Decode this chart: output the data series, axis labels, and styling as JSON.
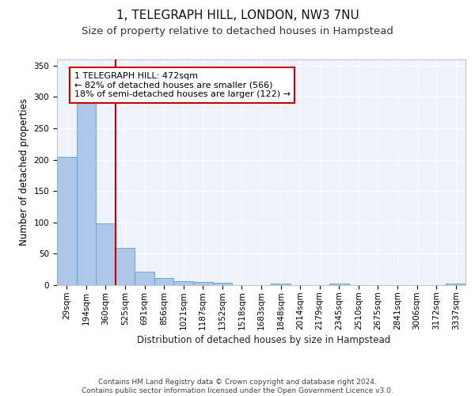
{
  "title": "1, TELEGRAPH HILL, LONDON, NW3 7NU",
  "subtitle": "Size of property relative to detached houses in Hampstead",
  "xlabel": "Distribution of detached houses by size in Hampstead",
  "ylabel": "Number of detached properties",
  "categories": [
    "29sqm",
    "194sqm",
    "360sqm",
    "525sqm",
    "691sqm",
    "856sqm",
    "1021sqm",
    "1187sqm",
    "1352sqm",
    "1518sqm",
    "1683sqm",
    "1848sqm",
    "2014sqm",
    "2179sqm",
    "2345sqm",
    "2510sqm",
    "2675sqm",
    "2841sqm",
    "3006sqm",
    "3172sqm",
    "3337sqm"
  ],
  "values": [
    204,
    291,
    98,
    60,
    21,
    11,
    6,
    5,
    4,
    0,
    0,
    2,
    0,
    0,
    3,
    0,
    0,
    0,
    0,
    0,
    3
  ],
  "bar_color": "#aec6e8",
  "bar_edge_color": "#5a9fd4",
  "property_line_color": "#cc0000",
  "annotation_text": "1 TELEGRAPH HILL: 472sqm\n← 82% of detached houses are smaller (566)\n18% of semi-detached houses are larger (122) →",
  "annotation_box_color": "#cc0000",
  "ylim": [
    0,
    360
  ],
  "yticks": [
    0,
    50,
    100,
    150,
    200,
    250,
    300,
    350
  ],
  "footer_text": "Contains HM Land Registry data © Crown copyright and database right 2024.\nContains public sector information licensed under the Open Government Licence v3.0.",
  "background_color": "#eef2fb",
  "grid_color": "#ffffff",
  "title_fontsize": 11,
  "subtitle_fontsize": 9.5,
  "axis_label_fontsize": 8.5,
  "tick_fontsize": 7.5,
  "annotation_fontsize": 8,
  "footer_fontsize": 6.5
}
